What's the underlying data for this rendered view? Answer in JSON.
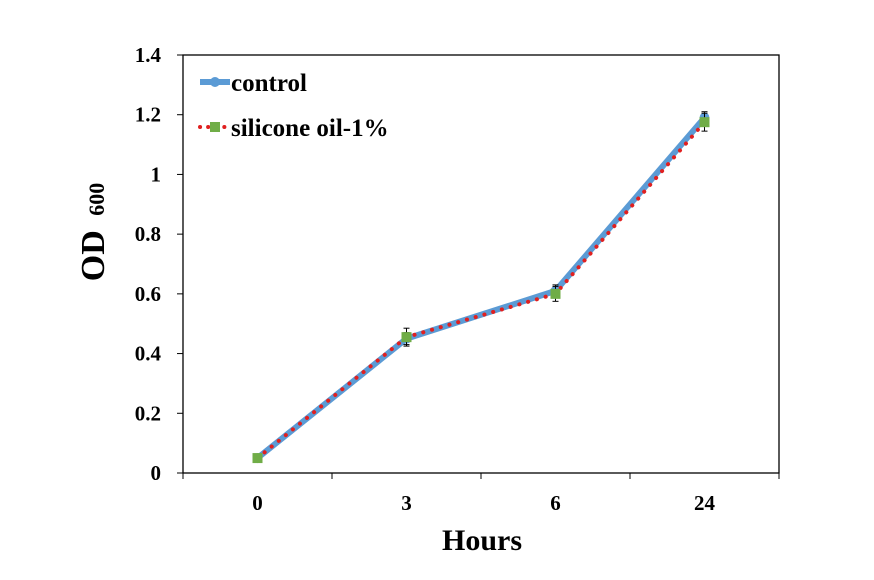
{
  "chart_data": {
    "type": "line",
    "categories": [
      "0",
      "3",
      "6",
      "24"
    ],
    "xlabel": "Hours",
    "ylabel": {
      "main": "OD",
      "sub": "600"
    },
    "ylim": [
      0,
      1.4
    ],
    "yticks": [
      "0",
      "0.2",
      "0.4",
      "0.6",
      "0.8",
      "1",
      "1.2",
      "1.4"
    ],
    "grid": false,
    "legend_position": "top-left",
    "series": [
      {
        "name": "control",
        "values": [
          0.05,
          0.45,
          0.61,
          1.19
        ],
        "errors": [
          0.01,
          0.02,
          0.02,
          0.02
        ],
        "color": "#5B9BD5",
        "style": "solid",
        "marker": "circle"
      },
      {
        "name": "silicone oil-1%",
        "values": [
          0.05,
          0.455,
          0.6,
          1.175
        ],
        "errors": [
          0.01,
          0.03,
          0.025,
          0.03
        ],
        "color": "#E02020",
        "marker_color": "#70AD47",
        "style": "dotted",
        "marker": "square"
      }
    ]
  }
}
